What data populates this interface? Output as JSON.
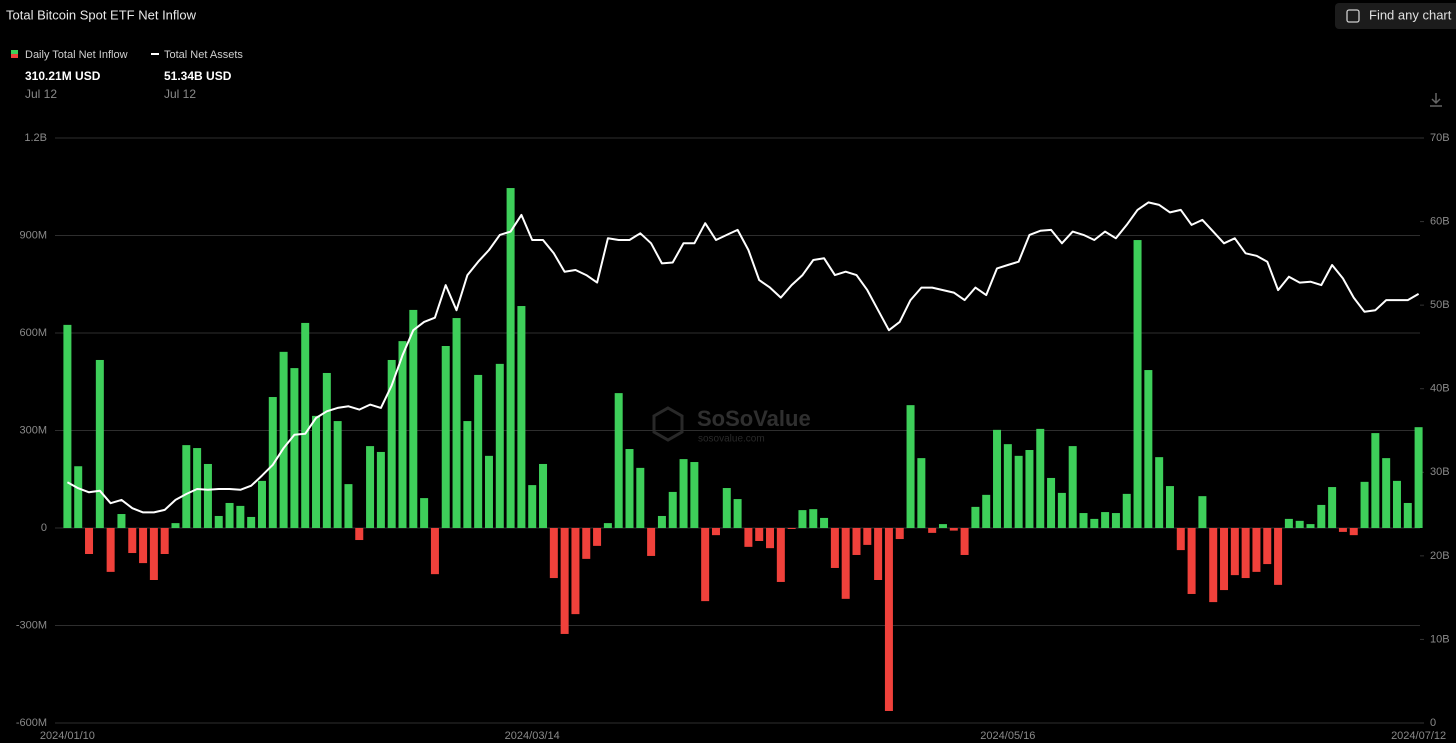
{
  "chart_data": {
    "type": "bar",
    "title": "Total Bitcoin Spot ETF Net Inflow",
    "search_button": "Find any chart",
    "watermark": "SoSoValue",
    "watermark_url": "sosovalue.com",
    "categories": [
      "2024/01/10",
      null,
      null,
      null,
      null,
      null,
      null,
      null,
      null,
      null,
      null,
      null,
      null,
      null,
      null,
      null,
      null,
      null,
      null,
      null,
      null,
      null,
      null,
      null,
      null,
      null,
      null,
      null,
      null,
      null,
      null,
      null,
      null,
      null,
      null,
      null,
      null,
      null,
      null,
      null,
      null,
      null,
      null,
      "2024/03/14",
      null,
      null,
      null,
      null,
      null,
      null,
      null,
      null,
      null,
      null,
      null,
      null,
      null,
      null,
      null,
      null,
      null,
      null,
      null,
      null,
      null,
      null,
      null,
      null,
      null,
      null,
      null,
      null,
      null,
      null,
      null,
      null,
      null,
      null,
      null,
      null,
      null,
      null,
      null,
      null,
      null,
      null,
      null,
      "2024/05/16",
      null,
      null,
      null,
      null,
      null,
      null,
      null,
      null,
      null,
      null,
      null,
      null,
      null,
      null,
      null,
      null,
      null,
      null,
      null,
      null,
      null,
      null,
      null,
      null,
      null,
      null,
      null,
      null,
      null,
      null,
      null,
      null,
      null,
      null,
      null,
      null,
      null,
      "2024/07/12"
    ],
    "series": [
      {
        "name": "Daily Total Net Inflow",
        "type": "bar",
        "color": "#3ecf5a",
        "negative_color": "#f0413b",
        "latest_label": "310.21M USD",
        "latest_date": "Jul 12",
        "values": [
          625,
          190,
          -80,
          517,
          -135,
          43,
          -77,
          -108,
          -160,
          -80,
          15,
          255,
          246,
          197,
          37,
          77,
          68,
          34,
          145,
          403,
          542,
          492,
          631,
          345,
          477,
          329,
          135,
          -37,
          252,
          234,
          517,
          575,
          671,
          92,
          -142,
          560,
          646,
          329,
          471,
          222,
          505,
          1046,
          683,
          132,
          197,
          -154,
          -326,
          -265,
          -95,
          -55,
          15,
          415,
          243,
          185,
          -86,
          37,
          111,
          212,
          203,
          -225,
          -22,
          123,
          89,
          -58,
          -40,
          -62,
          -166,
          -3,
          55,
          58,
          31,
          -123,
          -218,
          -83,
          -52,
          -160,
          -563,
          -34,
          378,
          215,
          -15,
          12,
          -8,
          -83,
          65,
          102,
          302,
          258,
          222,
          240,
          305,
          154,
          108,
          252,
          46,
          28,
          49,
          46,
          105,
          886,
          486,
          218,
          129,
          -68,
          -203,
          98,
          -228,
          -191,
          -145,
          -154,
          -135,
          -111,
          -175,
          28,
          22,
          12,
          71,
          126,
          -12,
          -22,
          142,
          292,
          215,
          145,
          77,
          310.21
        ]
      },
      {
        "name": "Total Net Assets",
        "type": "line",
        "axis": "y2",
        "color": "#ffffff",
        "latest_label": "51.34B USD",
        "latest_date": "Jul 12",
        "values": [
          28.8,
          28.1,
          27.6,
          27.8,
          26.3,
          26.7,
          25.7,
          25.2,
          25.2,
          25.5,
          26.7,
          27.4,
          28.0,
          27.9,
          28.0,
          28.0,
          27.9,
          28.4,
          29.6,
          30.9,
          32.9,
          34.5,
          34.6,
          36.5,
          37.3,
          37.7,
          37.9,
          37.5,
          38.1,
          37.7,
          40.4,
          44.0,
          47.0,
          48.0,
          48.5,
          52.4,
          49.4,
          53.6,
          55.2,
          56.6,
          58.4,
          58.8,
          60.8,
          57.8,
          57.8,
          56.2,
          54.0,
          54.2,
          53.6,
          52.7,
          58.0,
          57.8,
          57.8,
          58.6,
          57.4,
          55.0,
          55.1,
          57.4,
          57.4,
          59.8,
          57.8,
          58.4,
          59.0,
          56.6,
          53.0,
          52.1,
          50.9,
          52.4,
          53.6,
          55.4,
          55.6,
          53.6,
          54.0,
          53.6,
          51.8,
          49.4,
          47.0,
          48.0,
          50.6,
          52.1,
          52.1,
          51.8,
          51.5,
          50.6,
          52.1,
          51.2,
          54.4,
          54.8,
          55.2,
          58.4,
          58.9,
          59.0,
          57.4,
          58.8,
          58.4,
          57.8,
          58.8,
          58.0,
          59.6,
          61.4,
          62.3,
          62.0,
          61.1,
          61.4,
          59.6,
          60.2,
          58.8,
          57.4,
          58.0,
          56.2,
          55.9,
          55.2,
          51.8,
          53.4,
          52.7,
          52.8,
          52.4,
          54.8,
          53.2,
          50.9,
          49.2,
          49.4,
          50.6,
          50.6,
          50.6,
          51.34
        ]
      }
    ],
    "ylim": [
      -600,
      1200
    ],
    "yticks": [
      {
        "value": -600,
        "label": "-600M"
      },
      {
        "value": -300,
        "label": "-300M"
      },
      0,
      {
        "value": 300,
        "label": "300M"
      },
      {
        "value": 600,
        "label": "600M"
      },
      {
        "value": 900,
        "label": "900M"
      },
      {
        "value": 1200,
        "label": "1.2B"
      }
    ],
    "y2lim": [
      0,
      70
    ],
    "y2ticks": [
      0,
      {
        "value": 10,
        "label": "10B"
      },
      {
        "value": 20,
        "label": "20B"
      },
      {
        "value": 30,
        "label": "30B"
      },
      {
        "value": 40,
        "label": "40B"
      },
      {
        "value": 50,
        "label": "50B"
      },
      {
        "value": 60,
        "label": "60B"
      },
      {
        "value": 70,
        "label": "70B"
      }
    ],
    "grid": true
  }
}
